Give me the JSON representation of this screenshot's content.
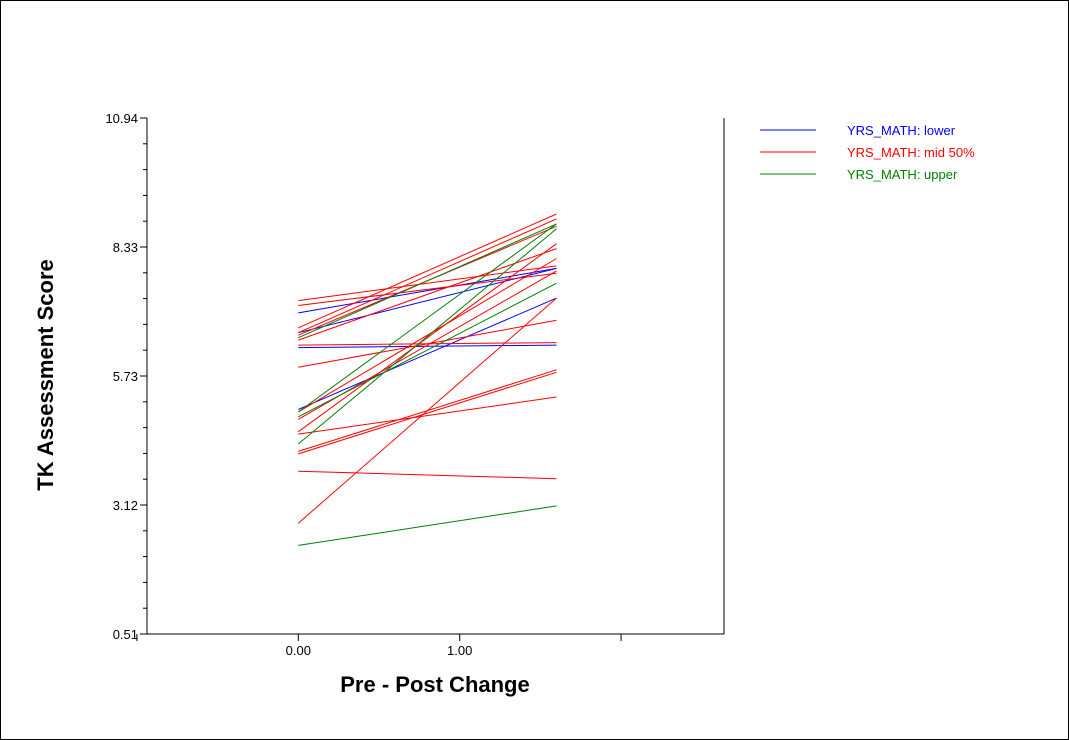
{
  "chart_data": {
    "type": "line",
    "xlabel": "Pre - Post Change",
    "ylabel": "TK Assessment Score",
    "x_tick_labels": [
      "0.00",
      "1.00"
    ],
    "x_ticks": [
      0,
      1
    ],
    "x_range": [
      -0.9375,
      2.6375
    ],
    "y_tick_labels": [
      "10.94",
      "8.33",
      "5.73",
      "3.12",
      "0.51"
    ],
    "y_ticks": [
      10.94,
      8.33,
      5.73,
      3.12,
      0.51
    ],
    "ylim": [
      0.51,
      10.94
    ],
    "grid": false,
    "legend_position": "top-right",
    "series": [
      {
        "name": "YRS_MATH: lower",
        "color": "#0000ff",
        "lines": [
          [
            [
              0,
              7.0
            ],
            [
              1.6,
              7.9
            ]
          ],
          [
            [
              0,
              6.3
            ],
            [
              1.6,
              6.35
            ]
          ],
          [
            [
              0,
              5.05
            ],
            [
              1.6,
              7.3
            ]
          ],
          [
            [
              0,
              6.6
            ],
            [
              1.6,
              7.9
            ]
          ]
        ]
      },
      {
        "name": "YRS_MATH: mid 50%",
        "color": "#ff0000",
        "lines": [
          [
            [
              0,
              7.25
            ],
            [
              1.6,
              7.95
            ]
          ],
          [
            [
              0,
              7.15
            ],
            [
              1.6,
              7.8
            ]
          ],
          [
            [
              0,
              6.7
            ],
            [
              1.6,
              9.0
            ]
          ],
          [
            [
              0,
              6.6
            ],
            [
              1.6,
              8.9
            ]
          ],
          [
            [
              0,
              6.55
            ],
            [
              1.6,
              8.75
            ]
          ],
          [
            [
              0,
              6.45
            ],
            [
              1.6,
              8.3
            ]
          ],
          [
            [
              0,
              6.35
            ],
            [
              1.6,
              6.4
            ]
          ],
          [
            [
              0,
              5.9
            ],
            [
              1.6,
              6.85
            ]
          ],
          [
            [
              0,
              5.0
            ],
            [
              1.6,
              8.1
            ]
          ],
          [
            [
              0,
              4.85
            ],
            [
              1.6,
              7.85
            ]
          ],
          [
            [
              0,
              4.55
            ],
            [
              1.6,
              5.3
            ]
          ],
          [
            [
              0,
              4.2
            ],
            [
              1.6,
              5.85
            ]
          ],
          [
            [
              0,
              4.15
            ],
            [
              1.6,
              5.8
            ]
          ],
          [
            [
              0,
              3.8
            ],
            [
              1.6,
              3.65
            ]
          ],
          [
            [
              0,
              2.75
            ],
            [
              1.6,
              7.3
            ]
          ],
          [
            [
              0,
              4.6
            ],
            [
              1.6,
              8.4
            ]
          ]
        ]
      },
      {
        "name": "YRS_MATH: upper",
        "color": "#008000",
        "lines": [
          [
            [
              0,
              6.5
            ],
            [
              1.6,
              8.8
            ]
          ],
          [
            [
              0,
              5.0
            ],
            [
              1.6,
              8.8
            ]
          ],
          [
            [
              0,
              4.9
            ],
            [
              1.6,
              7.6
            ]
          ],
          [
            [
              0,
              4.35
            ],
            [
              1.6,
              8.7
            ]
          ],
          [
            [
              0,
              2.3
            ],
            [
              1.6,
              3.1
            ]
          ]
        ]
      }
    ]
  }
}
